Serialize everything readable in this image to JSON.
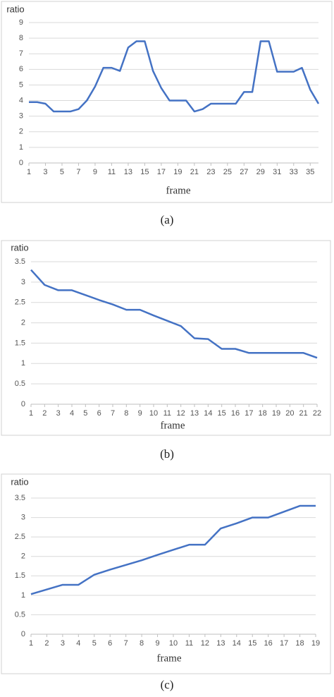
{
  "chart_data": [
    {
      "type": "line",
      "caption": "(a)",
      "y_label": "ratio",
      "x_label": "frame",
      "color": "#4472c4",
      "grid": true,
      "x": [
        1,
        2,
        3,
        4,
        5,
        6,
        7,
        8,
        9,
        10,
        11,
        12,
        13,
        14,
        15,
        16,
        17,
        18,
        19,
        20,
        21,
        22,
        23,
        24,
        25,
        26,
        27,
        28,
        29,
        30,
        31,
        32,
        33,
        34,
        35,
        36
      ],
      "values": [
        3.9,
        3.9,
        3.8,
        3.3,
        3.3,
        3.3,
        3.45,
        4.0,
        4.9,
        6.1,
        6.1,
        5.9,
        7.4,
        7.8,
        7.8,
        5.9,
        4.8,
        4.0,
        4.0,
        4.0,
        3.3,
        3.45,
        3.8,
        3.8,
        3.8,
        3.8,
        4.55,
        4.55,
        7.8,
        7.8,
        5.85,
        5.85,
        5.85,
        6.1,
        4.7,
        3.8
      ],
      "xlim": [
        1,
        36
      ],
      "xticks": [
        1,
        3,
        5,
        7,
        9,
        11,
        13,
        15,
        17,
        19,
        21,
        23,
        25,
        27,
        29,
        31,
        33,
        35
      ],
      "ylim": [
        0,
        9
      ],
      "yticks": [
        0,
        1,
        2,
        3,
        4,
        5,
        6,
        7,
        8,
        9
      ]
    },
    {
      "type": "line",
      "caption": "(b)",
      "y_label": "ratio",
      "x_label": "frame",
      "color": "#4472c4",
      "grid": true,
      "x": [
        1,
        2,
        3,
        4,
        5,
        6,
        7,
        8,
        9,
        10,
        11,
        12,
        13,
        14,
        15,
        16,
        17,
        18,
        19,
        20,
        21,
        22
      ],
      "values": [
        3.3,
        2.93,
        2.8,
        2.8,
        2.68,
        2.56,
        2.45,
        2.32,
        2.32,
        2.18,
        2.05,
        1.92,
        1.62,
        1.6,
        1.36,
        1.36,
        1.26,
        1.26,
        1.26,
        1.26,
        1.26,
        1.14
      ],
      "xlim": [
        1,
        22
      ],
      "xticks": [
        1,
        2,
        3,
        4,
        5,
        6,
        7,
        8,
        9,
        10,
        11,
        12,
        13,
        14,
        15,
        16,
        17,
        18,
        19,
        20,
        21,
        22
      ],
      "ylim": [
        0,
        3.5
      ],
      "yticks": [
        0,
        0.5,
        1,
        1.5,
        2,
        2.5,
        3,
        3.5
      ]
    },
    {
      "type": "line",
      "caption": "(c)",
      "y_label": "ratio",
      "x_label": "frame",
      "color": "#4472c4",
      "grid": true,
      "x": [
        1,
        2,
        3,
        4,
        5,
        6,
        7,
        8,
        9,
        10,
        11,
        12,
        13,
        14,
        15,
        16,
        17,
        18,
        19
      ],
      "values": [
        1.03,
        1.15,
        1.27,
        1.27,
        1.53,
        1.66,
        1.78,
        1.9,
        2.04,
        2.17,
        2.3,
        2.3,
        2.72,
        2.85,
        3.0,
        3.0,
        3.15,
        3.3,
        3.3
      ],
      "xlim": [
        1,
        19
      ],
      "xticks": [
        1,
        2,
        3,
        4,
        5,
        6,
        7,
        8,
        9,
        10,
        11,
        12,
        13,
        14,
        15,
        16,
        17,
        18,
        19
      ],
      "ylim": [
        0,
        3.5
      ],
      "yticks": [
        0,
        0.5,
        1,
        1.5,
        2,
        2.5,
        3,
        3.5
      ]
    }
  ]
}
